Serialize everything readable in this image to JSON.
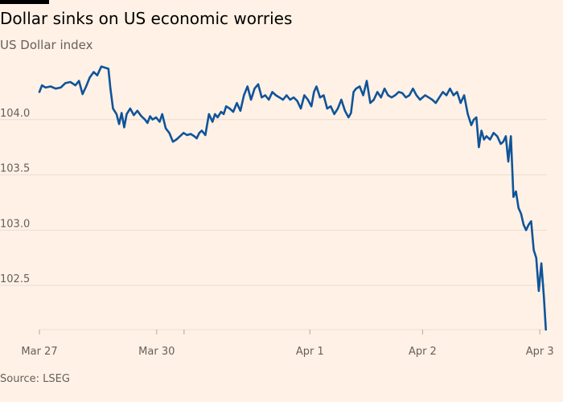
{
  "header": {
    "title": "Dollar sinks on US economic worries",
    "subtitle": "US Dollar index"
  },
  "footer": {
    "source": "Source: LSEG"
  },
  "colors": {
    "background": "#fff1e5",
    "line": "#0f5499",
    "gridline": "#e9ddd2",
    "text": "#66605c"
  },
  "chart_data": {
    "type": "line",
    "title": "Dollar sinks on US economic worries",
    "subtitle": "US Dollar index",
    "xlabel": "",
    "ylabel": "",
    "ylim": [
      102.1,
      104.5
    ],
    "yticks": [
      102.5,
      103.0,
      103.5,
      104.0
    ],
    "ytick_labels": [
      "102.5",
      "103.0",
      "103.5",
      "104.0"
    ],
    "xticks": [
      {
        "x": 0,
        "label": "Mar 27"
      },
      {
        "x": 0.231,
        "label": "Mar 30"
      },
      {
        "x": 0.533,
        "label": "Apr 1"
      },
      {
        "x": 0.755,
        "label": "Apr 2"
      },
      {
        "x": 0.986,
        "label": "Apr 3"
      }
    ],
    "extra_minor_ticks": [
      0.285
    ],
    "grid": "horizontal",
    "legend": "none",
    "series": [
      {
        "x": [
          0,
          0.005,
          0.012,
          0.022,
          0.032,
          0.042,
          0.051,
          0.061,
          0.071,
          0.078,
          0.085,
          0.092,
          0.099,
          0.107,
          0.114,
          0.122,
          0.129,
          0.136,
          0.14,
          0.145,
          0.152,
          0.157,
          0.162,
          0.167,
          0.172,
          0.179,
          0.186,
          0.193,
          0.201,
          0.208,
          0.213,
          0.218,
          0.223,
          0.23,
          0.237,
          0.242,
          0.249,
          0.256,
          0.263,
          0.27,
          0.277,
          0.284,
          0.291,
          0.298,
          0.305,
          0.31,
          0.315,
          0.32,
          0.327,
          0.334,
          0.341,
          0.346,
          0.351,
          0.358,
          0.363,
          0.368,
          0.375,
          0.382,
          0.389,
          0.396,
          0.403,
          0.41,
          0.417,
          0.424,
          0.431,
          0.438,
          0.445,
          0.452,
          0.459,
          0.466,
          0.473,
          0.48,
          0.487,
          0.494,
          0.501,
          0.508,
          0.515,
          0.522,
          0.529,
          0.536,
          0.541,
          0.546,
          0.553,
          0.56,
          0.567,
          0.574,
          0.581,
          0.588,
          0.595,
          0.602,
          0.609,
          0.614,
          0.619,
          0.624,
          0.631,
          0.638,
          0.645,
          0.652,
          0.659,
          0.666,
          0.673,
          0.68,
          0.687,
          0.694,
          0.701,
          0.708,
          0.715,
          0.722,
          0.729,
          0.736,
          0.743,
          0.75,
          0.755,
          0.76,
          0.767,
          0.774,
          0.781,
          0.788,
          0.795,
          0.802,
          0.809,
          0.816,
          0.823,
          0.83,
          0.837,
          0.844,
          0.851,
          0.856,
          0.861,
          0.866,
          0.871,
          0.876,
          0.881,
          0.888,
          0.895,
          0.902,
          0.909,
          0.914,
          0.919,
          0.924,
          0.929,
          0.934,
          0.939,
          0.944,
          0.949,
          0.954,
          0.959,
          0.964,
          0.969,
          0.974,
          0.979,
          0.984,
          0.989,
          0.994,
          0.998
        ],
        "y": [
          104.25,
          104.31,
          104.29,
          104.3,
          104.28,
          104.29,
          104.33,
          104.34,
          104.31,
          104.35,
          104.23,
          104.3,
          104.38,
          104.43,
          104.4,
          104.48,
          104.47,
          104.46,
          104.28,
          104.1,
          104.05,
          103.96,
          104.06,
          103.93,
          104.05,
          104.1,
          104.04,
          104.08,
          104.03,
          104.0,
          103.97,
          104.03,
          104.0,
          104.02,
          103.98,
          104.05,
          103.92,
          103.88,
          103.8,
          103.82,
          103.85,
          103.88,
          103.86,
          103.87,
          103.85,
          103.83,
          103.88,
          103.9,
          103.86,
          104.05,
          103.98,
          104.05,
          104.02,
          104.07,
          104.05,
          104.12,
          104.1,
          104.07,
          104.15,
          104.08,
          104.22,
          104.3,
          104.18,
          104.28,
          104.32,
          104.2,
          104.22,
          104.18,
          104.25,
          104.22,
          104.2,
          104.18,
          104.22,
          104.18,
          104.2,
          104.17,
          104.1,
          104.22,
          104.18,
          104.12,
          104.25,
          104.3,
          104.2,
          104.22,
          104.1,
          104.12,
          104.05,
          104.1,
          104.18,
          104.08,
          104.02,
          104.06,
          104.25,
          104.28,
          104.3,
          104.22,
          104.35,
          104.15,
          104.18,
          104.25,
          104.2,
          104.28,
          104.22,
          104.2,
          104.22,
          104.25,
          104.24,
          104.2,
          104.22,
          104.28,
          104.22,
          104.18,
          104.2,
          104.22,
          104.2,
          104.18,
          104.15,
          104.2,
          104.25,
          104.22,
          104.28,
          104.22,
          104.25,
          104.15,
          104.22,
          104.05,
          103.95,
          104.0,
          104.02,
          103.75,
          103.9,
          103.82,
          103.85,
          103.82,
          103.88,
          103.85,
          103.78,
          103.8,
          103.85,
          103.62,
          103.85,
          103.3,
          103.35,
          103.2,
          103.15,
          103.05,
          103.0,
          103.05,
          103.08,
          102.82,
          102.75,
          102.45,
          102.7,
          102.4,
          102.1
        ]
      }
    ]
  }
}
